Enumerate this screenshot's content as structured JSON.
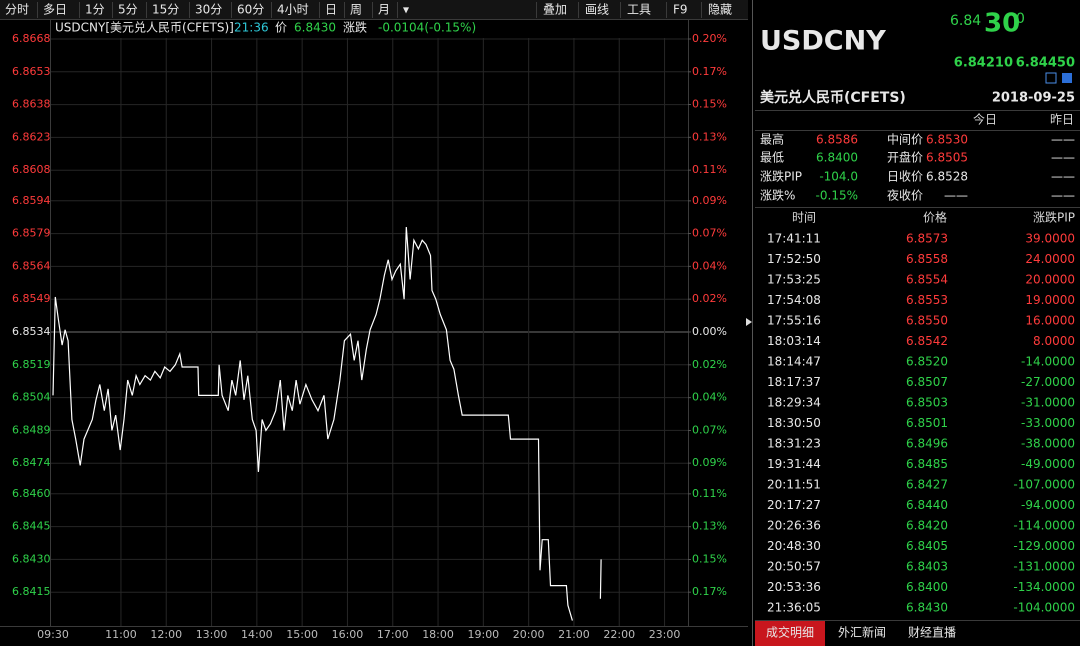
{
  "toolbar": {
    "left": [
      "分时",
      "多日",
      "1分",
      "5分",
      "15分",
      "30分",
      "60分",
      "4小时",
      "日",
      "周",
      "月",
      "▾"
    ],
    "right": [
      "叠加",
      "画线",
      "工具",
      "F9",
      "隐藏"
    ]
  },
  "info": {
    "symbol": "USDCNY[美元兑人民币(CFETS)]",
    "time": "21:36",
    "price_label": "价",
    "price": "6.8430",
    "change_label": "涨跌",
    "change": "-0.0104(-0.15%)"
  },
  "chart_data": {
    "type": "line",
    "color": "#ffffff",
    "grid": true,
    "x": [
      "09:30",
      "09:33",
      "09:37",
      "09:42",
      "09:46",
      "09:50",
      "09:55",
      "10:00",
      "10:06",
      "10:11",
      "10:16",
      "10:22",
      "10:27",
      "10:32",
      "10:38",
      "10:43",
      "10:48",
      "10:53",
      "10:59",
      "11:04",
      "11:09",
      "11:15",
      "11:20",
      "11:25",
      "11:32",
      "11:39",
      "11:45",
      "11:52",
      "11:58",
      "12:05",
      "12:12",
      "12:18",
      "12:21",
      "12:42",
      "12:43",
      "13:09",
      "13:10",
      "13:14",
      "13:22",
      "13:27",
      "13:32",
      "13:38",
      "13:43",
      "13:48",
      "13:54",
      "13:59",
      "14:02",
      "14:07",
      "14:12",
      "14:18",
      "14:25",
      "14:31",
      "14:36",
      "14:41",
      "14:47",
      "14:52",
      "14:57",
      "15:05",
      "15:13",
      "15:21",
      "15:29",
      "15:34",
      "15:42",
      "15:50",
      "15:56",
      "16:04",
      "16:09",
      "16:14",
      "16:19",
      "16:25",
      "16:30",
      "16:38",
      "16:43",
      "16:49",
      "16:54",
      "16:59",
      "17:04",
      "17:10",
      "17:15",
      "17:18",
      "17:23",
      "17:28",
      "17:34",
      "17:39",
      "17:44",
      "17:50",
      "17:52",
      "17:57",
      "18:03",
      "18:11",
      "18:16",
      "18:21",
      "18:27",
      "18:32",
      "19:33",
      "19:36",
      "20:13",
      "20:15",
      "20:18",
      "20:26",
      "20:29",
      "20:50",
      "20:52",
      "20:58",
      "21:10",
      "21:35",
      "21:36"
    ],
    "values": [
      6.8505,
      6.855,
      6.854,
      6.8528,
      6.8535,
      6.853,
      6.8494,
      6.8485,
      6.8473,
      6.8485,
      6.8489,
      6.8494,
      6.8503,
      6.851,
      6.8498,
      6.8508,
      6.8489,
      6.8496,
      6.848,
      6.8494,
      6.8512,
      6.8505,
      6.8514,
      6.851,
      6.8514,
      6.8512,
      6.8516,
      6.8513,
      6.8518,
      6.8516,
      6.8519,
      6.8524,
      6.8518,
      6.8518,
      6.8505,
      6.8505,
      6.8519,
      6.8505,
      6.8498,
      6.8512,
      6.8505,
      6.8521,
      6.8503,
      6.8514,
      6.8494,
      6.8489,
      6.847,
      6.8494,
      6.8489,
      6.8492,
      6.8498,
      6.8512,
      6.8489,
      6.8505,
      6.8498,
      6.8512,
      6.8501,
      6.851,
      6.8503,
      6.8498,
      6.8505,
      6.8485,
      6.8494,
      6.8512,
      6.853,
      6.8533,
      6.8521,
      6.853,
      6.8512,
      6.8526,
      6.8535,
      6.8542,
      6.8549,
      6.856,
      6.8567,
      6.8558,
      6.8562,
      6.8565,
      6.8549,
      6.8582,
      6.8558,
      6.8576,
      6.8572,
      6.8576,
      6.8574,
      6.8569,
      6.8553,
      6.8549,
      6.8542,
      6.8535,
      6.8521,
      6.8517,
      6.8505,
      6.8496,
      6.8496,
      6.8485,
      6.8485,
      6.8425,
      6.8439,
      6.8439,
      6.8418,
      6.8418,
      6.8409,
      6.8402,
      null,
      6.8412,
      6.843
    ],
    "xlim": [
      "09:30",
      "23:30"
    ],
    "xticks": [
      "09:30",
      "11:00",
      "12:00",
      "13:00",
      "14:00",
      "15:00",
      "16:00",
      "17:00",
      "18:00",
      "19:00",
      "20:00",
      "21:00",
      "22:00",
      "23:00"
    ],
    "ylim": [
      6.84,
      6.8668
    ],
    "yticks": [
      {
        "value": 6.8668,
        "label": "6.8668"
      },
      {
        "value": 6.8653,
        "label": "6.8653"
      },
      {
        "value": 6.8638,
        "label": "6.8638"
      },
      {
        "value": 6.8623,
        "label": "6.8623"
      },
      {
        "value": 6.8608,
        "label": "6.8608"
      },
      {
        "value": 6.8594,
        "label": "6.8594"
      },
      {
        "value": 6.8579,
        "label": "6.8579"
      },
      {
        "value": 6.8564,
        "label": "6.8564"
      },
      {
        "value": 6.8549,
        "label": "6.8549"
      },
      {
        "value": 6.8534,
        "label": "6.8534"
      },
      {
        "value": 6.8519,
        "label": "6.8519"
      },
      {
        "value": 6.8504,
        "label": "6.8504"
      },
      {
        "value": 6.8489,
        "label": "6.8489"
      },
      {
        "value": 6.8474,
        "label": "6.8474"
      },
      {
        "value": 6.846,
        "label": "6.8460"
      },
      {
        "value": 6.8445,
        "label": "6.8445"
      },
      {
        "value": 6.843,
        "label": "6.8430"
      },
      {
        "value": 6.8415,
        "label": "6.8415"
      }
    ],
    "y2lim": [
      -0.1955,
      0.1955
    ],
    "y2ticks": [
      {
        "value": 0.1955,
        "label": "0.20%"
      },
      {
        "value": 0.1736,
        "label": "0.17%"
      },
      {
        "value": 0.1518,
        "label": "0.15%"
      },
      {
        "value": 0.1299,
        "label": "0.13%"
      },
      {
        "value": 0.108,
        "label": "0.11%"
      },
      {
        "value": 0.0875,
        "label": "0.09%"
      },
      {
        "value": 0.0657,
        "label": "0.07%"
      },
      {
        "value": 0.0438,
        "label": "0.04%"
      },
      {
        "value": 0.0219,
        "label": "0.02%"
      },
      {
        "value": 0,
        "label": "0.00%"
      },
      {
        "value": -0.0219,
        "label": "0.02%"
      },
      {
        "value": -0.0438,
        "label": "0.04%"
      },
      {
        "value": -0.0657,
        "label": "0.07%"
      },
      {
        "value": -0.0875,
        "label": "0.09%"
      },
      {
        "value": -0.108,
        "label": "0.11%"
      },
      {
        "value": -0.1299,
        "label": "0.13%"
      },
      {
        "value": -0.1518,
        "label": "0.15%"
      },
      {
        "value": -0.1736,
        "label": "0.17%"
      }
    ]
  },
  "quote": {
    "symbol": "USDCNY",
    "price_head": "6.84",
    "price_big": "30",
    "price_tail": "0",
    "bid": "6.84210",
    "ask": "6.84450",
    "name": "美元兑人民币(CFETS)",
    "date": "2018-09-25"
  },
  "stats": {
    "header": [
      "今日",
      "昨日"
    ],
    "rows": [
      [
        "最高",
        "6.8586",
        "中间价",
        "6.8530",
        "——"
      ],
      [
        "最低",
        "6.8400",
        "开盘价",
        "6.8505",
        "——"
      ],
      [
        "涨跌PIP",
        "-104.0",
        "日收价",
        "6.8528",
        "——"
      ],
      [
        "涨跌%",
        "-0.15%",
        "夜收价",
        "——",
        "——"
      ]
    ]
  },
  "ticks": {
    "header": [
      "时间",
      "价格",
      "涨跌PIP"
    ],
    "rows": [
      [
        "17:41:11",
        "6.8573",
        "39.0000"
      ],
      [
        "17:52:50",
        "6.8558",
        "24.0000"
      ],
      [
        "17:53:25",
        "6.8554",
        "20.0000"
      ],
      [
        "17:54:08",
        "6.8553",
        "19.0000"
      ],
      [
        "17:55:16",
        "6.8550",
        "16.0000"
      ],
      [
        "18:03:14",
        "6.8542",
        "8.0000"
      ],
      [
        "18:14:47",
        "6.8520",
        "-14.0000"
      ],
      [
        "18:17:37",
        "6.8507",
        "-27.0000"
      ],
      [
        "18:29:34",
        "6.8503",
        "-31.0000"
      ],
      [
        "18:30:50",
        "6.8501",
        "-33.0000"
      ],
      [
        "18:31:23",
        "6.8496",
        "-38.0000"
      ],
      [
        "19:31:44",
        "6.8485",
        "-49.0000"
      ],
      [
        "20:11:51",
        "6.8427",
        "-107.0000"
      ],
      [
        "20:17:27",
        "6.8440",
        "-94.0000"
      ],
      [
        "20:26:36",
        "6.8420",
        "-114.0000"
      ],
      [
        "20:48:30",
        "6.8405",
        "-129.0000"
      ],
      [
        "20:50:57",
        "6.8403",
        "-131.0000"
      ],
      [
        "20:53:36",
        "6.8400",
        "-134.0000"
      ],
      [
        "21:36:05",
        "6.8430",
        "-104.0000"
      ]
    ]
  },
  "tabs": [
    "成交明细",
    "外汇新闻",
    "财经直播"
  ]
}
